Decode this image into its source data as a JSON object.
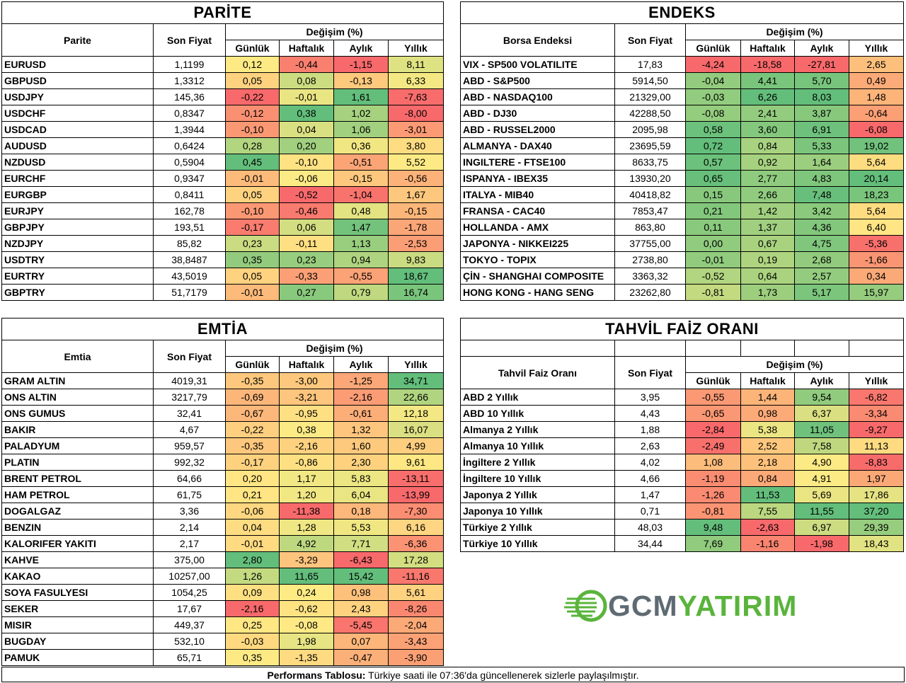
{
  "cols": {
    "pct_group": "Değişim (%)",
    "daily": "Günlük",
    "weekly": "Haftalık",
    "monthly": "Aylık",
    "yearly": "Yıllık",
    "price": "Son Fiyat"
  },
  "colors": {
    "red": "#f8696b",
    "yellow": "#ffeb84",
    "green": "#63be7b"
  },
  "parite": {
    "title": "PARİTE",
    "name_header": "Parite",
    "rows": [
      {
        "name": "EURUSD",
        "price": "1,1199",
        "d": "0,12",
        "w": "-0,44",
        "m": "-1,15",
        "y": "8,11"
      },
      {
        "name": "GBPUSD",
        "price": "1,3312",
        "d": "0,05",
        "w": "0,08",
        "m": "-0,13",
        "y": "6,33"
      },
      {
        "name": "USDJPY",
        "price": "145,36",
        "d": "-0,22",
        "w": "-0,01",
        "m": "1,61",
        "y": "-7,63"
      },
      {
        "name": "USDCHF",
        "price": "0,8347",
        "d": "-0,12",
        "w": "0,38",
        "m": "1,02",
        "y": "-8,00"
      },
      {
        "name": "USDCAD",
        "price": "1,3944",
        "d": "-0,10",
        "w": "0,04",
        "m": "1,06",
        "y": "-3,01"
      },
      {
        "name": "AUDUSD",
        "price": "0,6424",
        "d": "0,28",
        "w": "0,20",
        "m": "0,36",
        "y": "3,80"
      },
      {
        "name": "NZDUSD",
        "price": "0,5904",
        "d": "0,45",
        "w": "-0,10",
        "m": "-0,51",
        "y": "5,52"
      },
      {
        "name": "EURCHF",
        "price": "0,9347",
        "d": "-0,01",
        "w": "-0,06",
        "m": "-0,15",
        "y": "-0,56"
      },
      {
        "name": "EURGBP",
        "price": "0,8411",
        "d": "0,05",
        "w": "-0,52",
        "m": "-1,04",
        "y": "1,67"
      },
      {
        "name": "EURJPY",
        "price": "162,78",
        "d": "-0,10",
        "w": "-0,46",
        "m": "0,48",
        "y": "-0,15"
      },
      {
        "name": "GBPJPY",
        "price": "193,51",
        "d": "-0,17",
        "w": "0,06",
        "m": "1,47",
        "y": "-1,78"
      },
      {
        "name": "NZDJPY",
        "price": "85,82",
        "d": "0,23",
        "w": "-0,11",
        "m": "1,13",
        "y": "-2,53"
      },
      {
        "name": "USDTRY",
        "price": "38,8487",
        "d": "0,35",
        "w": "0,23",
        "m": "0,94",
        "y": "9,83"
      },
      {
        "name": "EURTRY",
        "price": "43,5019",
        "d": "0,05",
        "w": "-0,33",
        "m": "-0,55",
        "y": "18,67"
      },
      {
        "name": "GBPTRY",
        "price": "51,7179",
        "d": "-0,01",
        "w": "0,27",
        "m": "0,79",
        "y": "16,74"
      }
    ]
  },
  "endeks": {
    "title": "ENDEKS",
    "name_header": "Borsa Endeksi",
    "rows": [
      {
        "name": "VIX  - SP500 VOLATILITE",
        "price": "17,83",
        "d": "-4,24",
        "w": "-18,58",
        "m": "-27,81",
        "y": "2,65"
      },
      {
        "name": "ABD - S&P500",
        "price": "5914,50",
        "d": "-0,04",
        "w": "4,41",
        "m": "5,70",
        "y": "0,49"
      },
      {
        "name": "ABD - NASDAQ100",
        "price": "21329,00",
        "d": "-0,03",
        "w": "6,26",
        "m": "8,03",
        "y": "1,48"
      },
      {
        "name": "ABD - DJ30",
        "price": "42288,50",
        "d": "-0,08",
        "w": "2,41",
        "m": "3,87",
        "y": "-0,64"
      },
      {
        "name": "ABD - RUSSEL2000",
        "price": "2095,98",
        "d": "0,58",
        "w": "3,60",
        "m": "6,91",
        "y": "-6,08"
      },
      {
        "name": "ALMANYA - DAX40",
        "price": "23695,59",
        "d": "0,72",
        "w": "0,84",
        "m": "5,33",
        "y": "19,02"
      },
      {
        "name": "INGILTERE - FTSE100",
        "price": "8633,75",
        "d": "0,57",
        "w": "0,92",
        "m": "1,64",
        "y": "5,64"
      },
      {
        "name": "ISPANYA - IBEX35",
        "price": "13930,20",
        "d": "0,65",
        "w": "2,77",
        "m": "4,83",
        "y": "20,14"
      },
      {
        "name": "ITALYA - MIB40",
        "price": "40418,82",
        "d": "0,15",
        "w": "2,66",
        "m": "7,48",
        "y": "18,23"
      },
      {
        "name": "FRANSA - CAC40",
        "price": "7853,47",
        "d": "0,21",
        "w": "1,42",
        "m": "3,42",
        "y": "5,64"
      },
      {
        "name": "HOLLANDA - AMX",
        "price": "863,80",
        "d": "0,11",
        "w": "1,37",
        "m": "4,36",
        "y": "6,40"
      },
      {
        "name": "JAPONYA - NIKKEI225",
        "price": "37755,00",
        "d": "0,00",
        "w": "0,67",
        "m": "4,75",
        "y": "-5,36"
      },
      {
        "name": "TOKYO - TOPIX",
        "price": "2738,80",
        "d": "-0,01",
        "w": "0,19",
        "m": "2,68",
        "y": "-1,66"
      },
      {
        "name": "ÇİN - SHANGHAI COMPOSITE",
        "price": "3363,32",
        "d": "-0,52",
        "w": "0,64",
        "m": "2,57",
        "y": "0,34"
      },
      {
        "name": "HONG KONG - HANG SENG",
        "price": "23262,80",
        "d": "-0,81",
        "w": "1,73",
        "m": "5,17",
        "y": "15,97"
      }
    ]
  },
  "emtia": {
    "title": "EMTİA",
    "name_header": "Emtia",
    "rows": [
      {
        "name": "GRAM ALTIN",
        "price": "4019,31",
        "d": "-0,35",
        "w": "-3,00",
        "m": "-1,25",
        "y": "34,71"
      },
      {
        "name": "ONS ALTIN",
        "price": "3217,79",
        "d": "-0,69",
        "w": "-3,21",
        "m": "-2,16",
        "y": "22,66"
      },
      {
        "name": "ONS GUMUS",
        "price": "32,41",
        "d": "-0,67",
        "w": "-0,95",
        "m": "-0,61",
        "y": "12,18"
      },
      {
        "name": "BAKIR",
        "price": "4,67",
        "d": "-0,22",
        "w": "0,38",
        "m": "1,32",
        "y": "16,07"
      },
      {
        "name": "PALADYUM",
        "price": "959,57",
        "d": "-0,35",
        "w": "-2,16",
        "m": "1,60",
        "y": "4,99"
      },
      {
        "name": "PLATIN",
        "price": "992,32",
        "d": "-0,17",
        "w": "-0,86",
        "m": "2,30",
        "y": "9,61"
      },
      {
        "name": "BRENT PETROL",
        "price": "64,66",
        "d": "0,20",
        "w": "1,17",
        "m": "5,83",
        "y": "-13,11"
      },
      {
        "name": "HAM PETROL",
        "price": "61,75",
        "d": "0,21",
        "w": "1,20",
        "m": "6,04",
        "y": "-13,99"
      },
      {
        "name": "DOGALGAZ",
        "price": "3,36",
        "d": "-0,06",
        "w": "-11,38",
        "m": "0,18",
        "y": "-7,30"
      },
      {
        "name": "BENZIN",
        "price": "2,14",
        "d": "0,04",
        "w": "1,28",
        "m": "5,53",
        "y": "6,16"
      },
      {
        "name": "KALORIFER YAKITI",
        "price": "2,17",
        "d": "-0,01",
        "w": "4,92",
        "m": "7,71",
        "y": "-6,36"
      },
      {
        "name": "KAHVE",
        "price": "375,00",
        "d": "2,80",
        "w": "-3,29",
        "m": "-6,43",
        "y": "17,28"
      },
      {
        "name": "KAKAO",
        "price": "10257,00",
        "d": "1,26",
        "w": "11,65",
        "m": "15,42",
        "y": "-11,16"
      },
      {
        "name": "SOYA FASULYESI",
        "price": "1054,25",
        "d": "0,09",
        "w": "0,24",
        "m": "0,98",
        "y": "5,61"
      },
      {
        "name": "SEKER",
        "price": "17,67",
        "d": "-2,16",
        "w": "-0,62",
        "m": "2,43",
        "y": "-8,26"
      },
      {
        "name": "MISIR",
        "price": "449,37",
        "d": "0,25",
        "w": "-0,08",
        "m": "-5,45",
        "y": "-2,04"
      },
      {
        "name": "BUGDAY",
        "price": "532,10",
        "d": "-0,03",
        "w": "1,98",
        "m": "0,07",
        "y": "-3,43"
      },
      {
        "name": "PAMUK",
        "price": "65,71",
        "d": "0,35",
        "w": "-1,35",
        "m": "-0,47",
        "y": "-3,90"
      }
    ]
  },
  "tahvil": {
    "title": "TAHVİL FAİZ ORANI",
    "name_header": "Tahvil Faiz Oranı",
    "rows": [
      {
        "name": "ABD 2 Yıllık",
        "price": "3,95",
        "d": "-0,55",
        "w": "1,44",
        "m": "9,54",
        "y": "-6,82"
      },
      {
        "name": "ABD 10 Yıllık",
        "price": "4,43",
        "d": "-0,65",
        "w": "0,98",
        "m": "6,37",
        "y": "-3,34"
      },
      {
        "name": "Almanya 2 Yıllık",
        "price": "1,88",
        "d": "-2,84",
        "w": "5,38",
        "m": "11,05",
        "y": "-9,27"
      },
      {
        "name": "Almanya 10 Yıllık",
        "price": "2,63",
        "d": "-2,49",
        "w": "2,52",
        "m": "7,58",
        "y": "11,13"
      },
      {
        "name": "İngiltere 2 Yıllık",
        "price": "4,02",
        "d": "1,08",
        "w": "2,18",
        "m": "4,90",
        "y": "-8,83"
      },
      {
        "name": "İngiltere 10 Yıllık",
        "price": "4,66",
        "d": "-1,19",
        "w": "0,84",
        "m": "4,91",
        "y": "1,97"
      },
      {
        "name": "Japonya 2 Yıllık",
        "price": "1,47",
        "d": "-1,26",
        "w": "11,53",
        "m": "5,69",
        "y": "17,86"
      },
      {
        "name": "Japonya 10 Yıllık",
        "price": "0,71",
        "d": "-0,81",
        "w": "7,55",
        "m": "11,55",
        "y": "37,20"
      },
      {
        "name": "Türkiye 2 Yıllık",
        "price": "48,03",
        "d": "9,48",
        "w": "-2,63",
        "m": "6,97",
        "y": "29,39"
      },
      {
        "name": "Türkiye 10 Yıllık",
        "price": "34,44",
        "d": "7,69",
        "w": "-1,16",
        "m": "-1,98",
        "y": "18,43"
      }
    ]
  },
  "logo": {
    "part1": "GCM",
    "part2": "YATIRIM"
  },
  "footer": {
    "bold": "Performans Tablosu:",
    "text": " Türkiye saati ile 07:36'da güncellenerek sizlerle paylaşılmıştır."
  }
}
